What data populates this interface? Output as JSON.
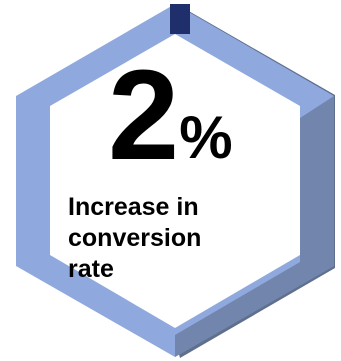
{
  "stat": {
    "value": "2",
    "unit": "%"
  },
  "caption": {
    "lines": [
      "Increase in",
      "conversion",
      "rate"
    ]
  },
  "progress": {
    "fraction": 0.98
  },
  "colors": {
    "ring": "#8fa8de",
    "ring_shadow": "#5f6f8e",
    "accent": "#1f2f6b",
    "inner": "#ffffff",
    "text": "#000000"
  }
}
